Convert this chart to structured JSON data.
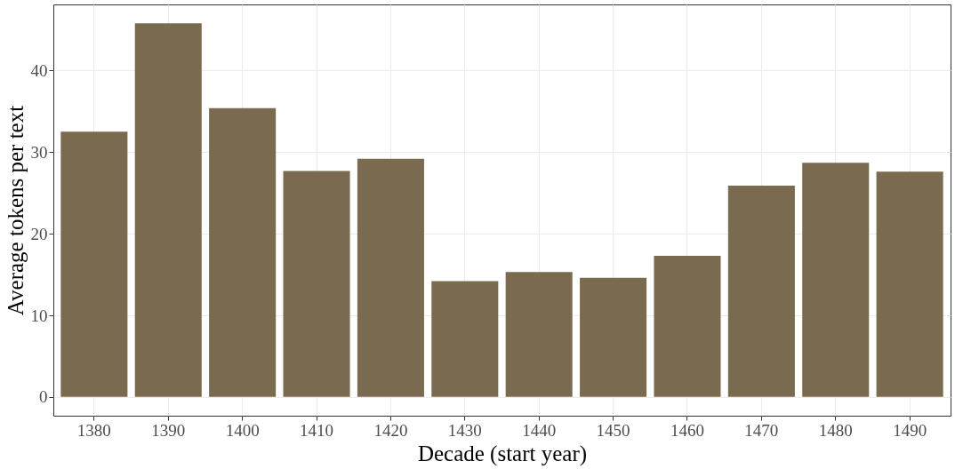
{
  "chart_data": {
    "type": "bar",
    "xlabel": "Decade (start year)",
    "ylabel": "Average tokens per text",
    "categories": [
      "1380",
      "1390",
      "1400",
      "1410",
      "1420",
      "1430",
      "1440",
      "1450",
      "1460",
      "1470",
      "1480",
      "1490"
    ],
    "values": [
      32.5,
      45.8,
      35.4,
      27.7,
      29.2,
      14.2,
      15.3,
      14.6,
      17.3,
      25.9,
      28.7,
      27.6
    ],
    "color": "#7a6a4f",
    "ylim": [
      -2.3,
      48.1
    ],
    "yticks": [
      0,
      10,
      20,
      30,
      40
    ],
    "grid": true
  }
}
